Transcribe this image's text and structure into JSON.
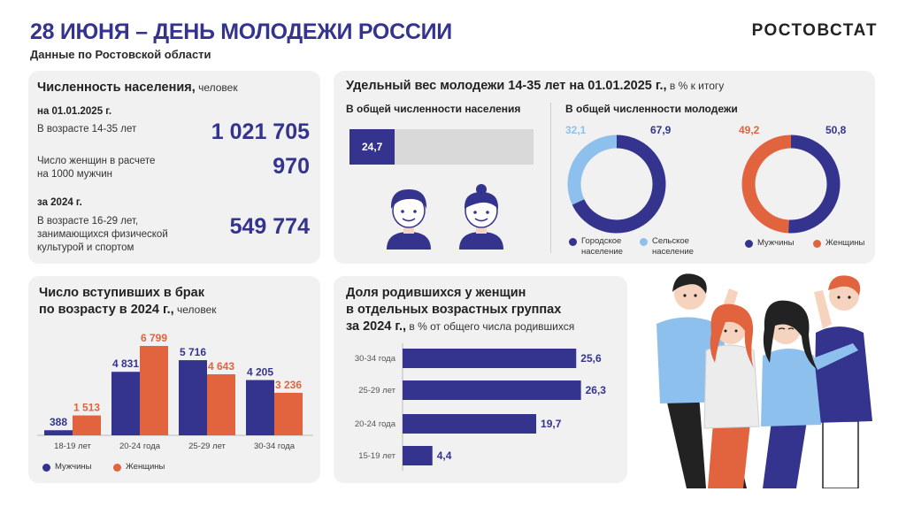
{
  "header": {
    "title": "28 ИЮНЯ – ДЕНЬ МОЛОДЕЖИ РОССИИ",
    "subtitle": "Данные по Ростовской области",
    "logo": "РОСТОВСТАТ"
  },
  "population": {
    "title": "Численность населения,",
    "unit": " человек",
    "date1": "на 01.01.2025 г.",
    "row1_label": "В возрасте 14-35 лет",
    "row1_value": "1 021 705",
    "row2_label_1": "Число женщин в расчете",
    "row2_label_2": "на 1000 мужчин",
    "row2_value": "970",
    "date2": "за 2024 г.",
    "row3_label_1": "В возрасте 16-29 лет,",
    "row3_label_2": "занимающихся физической",
    "row3_label_3": "культурой и спортом",
    "row3_value": "549 774"
  },
  "youth_share": {
    "title": "Удельный вес молодежи 14-35 лет на 01.01.2025 г.,",
    "unit": " в % к итогу",
    "col1_title": "В общей численности населения",
    "col2_title": "В общей численности молодежи",
    "share_total_value": "24,7",
    "share_total_percent": 24.7,
    "donut1": {
      "left_label": "32,1",
      "right_label": "67,9",
      "urban": 67.9,
      "rural": 32.1,
      "legend_urban_1": "Городское",
      "legend_urban_2": "население",
      "legend_rural_1": "Сельское",
      "legend_rural_2": "население"
    },
    "donut2": {
      "left_label": "49,2",
      "right_label": "50,8",
      "men": 50.8,
      "women": 49.2,
      "legend_men": "Мужчины",
      "legend_women": "Женщины"
    }
  },
  "colors": {
    "navy": "#34348e",
    "orange": "#e2643f",
    "lightblue": "#8ec0ee",
    "grey": "#d9d9d9",
    "panel": "#f1f1f1"
  },
  "marriages": {
    "title_1": "Число вступивших в брак",
    "title_2": "по возрасту в 2024 г.,",
    "unit": " человек",
    "legend_men": "Мужчины",
    "legend_women": "Женщины"
  },
  "births": {
    "title_1": "Доля родившихся у женщин",
    "title_2": "в отдельных возрастных группах",
    "title_3": "за 2024 г.,",
    "unit": " в % от общего числа родившихся"
  },
  "chart_data": [
    {
      "type": "bar",
      "categories": [
        "18-19 лет",
        "20-24 года",
        "25-29 лет",
        "30-34 года"
      ],
      "series": [
        {
          "name": "Мужчины",
          "values": [
            388,
            4831,
            5716,
            4205
          ],
          "labels": [
            "388",
            "4 831",
            "5 716",
            "4 205"
          ]
        },
        {
          "name": "Женщины",
          "values": [
            1513,
            6799,
            4643,
            3236
          ],
          "labels": [
            "1 513",
            "6 799",
            "4 643",
            "3 236"
          ]
        }
      ],
      "ylim": [
        0,
        7000
      ]
    },
    {
      "type": "bar",
      "orientation": "horizontal",
      "categories": [
        "30-34 года",
        "25-29 лет",
        "20-24 года",
        "15-19 лет"
      ],
      "values": [
        25.6,
        26.3,
        19.7,
        4.4
      ],
      "labels": [
        "25,6",
        "26,3",
        "19,7",
        "4,4"
      ],
      "xlim": [
        0,
        30
      ]
    }
  ]
}
